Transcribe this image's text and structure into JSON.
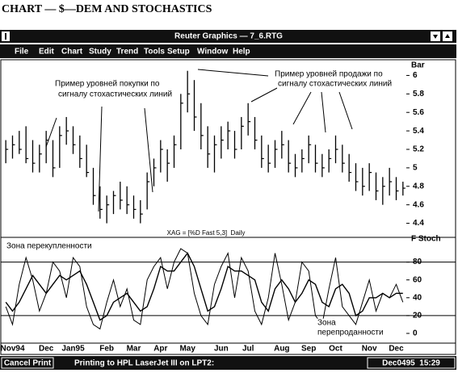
{
  "heading": "CHART — $—DEM AND STOCHASTICS",
  "window": {
    "title": "Reuter Graphics — 7_6.RTG",
    "menu": [
      "File",
      "Edit",
      "Chart",
      "Study",
      "Trend",
      "Tools",
      "Setup",
      "Window",
      "Help"
    ]
  },
  "status": {
    "button": "Cancel Print",
    "message": "Printing to HPL LaserJet III on LPT2:",
    "datetime": "Dec0495  15:29"
  },
  "chart_data": [
    {
      "type": "hlc",
      "y_label": "Bar",
      "color": "#000000",
      "ylim": [
        4.3,
        6.1
      ],
      "yticks": [
        4.4,
        4.6,
        4.8,
        5,
        5.2,
        5.4,
        5.6,
        5.8,
        6
      ],
      "high": [
        5.3,
        5.35,
        5.4,
        5.45,
        5.3,
        5.25,
        5.4,
        5.3,
        5.45,
        5.55,
        5.45,
        5.35,
        5.25,
        5.0,
        4.8,
        4.7,
        4.75,
        4.85,
        4.8,
        4.7,
        4.65,
        4.95,
        5.1,
        5.3,
        5.2,
        5.35,
        5.8,
        6.05,
        5.95,
        5.7,
        5.45,
        5.35,
        5.45,
        5.5,
        5.4,
        5.55,
        5.7,
        5.55,
        5.35,
        5.25,
        5.3,
        5.4,
        5.3,
        5.15,
        5.2,
        5.35,
        5.25,
        5.15,
        5.2,
        5.35,
        5.25,
        5.15,
        5.05,
        5.0,
        5.05,
        4.95,
        4.9,
        5.0,
        4.9,
        4.85
      ],
      "low": [
        5.05,
        5.1,
        5.15,
        5.05,
        4.95,
        4.95,
        5.05,
        4.9,
        5.0,
        5.25,
        5.15,
        5.0,
        4.9,
        4.6,
        4.45,
        4.4,
        4.5,
        4.55,
        4.5,
        4.45,
        4.4,
        4.55,
        4.8,
        4.95,
        4.85,
        5.0,
        5.2,
        5.6,
        5.4,
        5.2,
        5.0,
        4.95,
        5.1,
        5.2,
        5.1,
        5.2,
        5.35,
        5.2,
        5.0,
        4.95,
        5.0,
        5.1,
        4.95,
        4.9,
        4.95,
        5.05,
        4.95,
        4.9,
        4.95,
        5.05,
        4.95,
        4.85,
        4.75,
        4.7,
        4.75,
        4.65,
        4.6,
        4.7,
        4.65,
        4.7
      ],
      "close": [
        5.2,
        5.25,
        5.2,
        5.1,
        5.05,
        5.15,
        5.3,
        5.0,
        5.35,
        5.4,
        5.25,
        5.1,
        4.95,
        4.7,
        4.55,
        4.6,
        4.7,
        4.65,
        4.6,
        4.55,
        4.5,
        4.85,
        5.0,
        5.2,
        5.05,
        5.25,
        5.7,
        5.8,
        5.55,
        5.35,
        5.15,
        5.25,
        5.3,
        5.4,
        5.2,
        5.45,
        5.5,
        5.3,
        5.1,
        5.05,
        5.2,
        5.25,
        5.05,
        5.0,
        5.1,
        5.25,
        5.05,
        5.0,
        5.1,
        5.2,
        5.05,
        4.95,
        4.85,
        4.8,
        4.95,
        4.75,
        4.8,
        4.85,
        4.75,
        4.78
      ],
      "annotations": [
        {
          "lines": [
            "Пример уровней покупки по",
            "сигналу стохастических линий"
          ]
        },
        {
          "lines": [
            "Пример уровней продажи по",
            "сигналу стохастических линий"
          ]
        }
      ]
    },
    {
      "type": "line",
      "subtitle": "XAG = [%D Fast 5,3]  Daily",
      "y_label": "F Stoch",
      "ylim": [
        -10,
        105
      ],
      "yticks": [
        0,
        20,
        40,
        60,
        80
      ],
      "reference_lines": [
        80,
        20
      ],
      "categories": [
        null,
        "Nov94",
        null,
        null,
        null,
        null,
        "Dec",
        null,
        null,
        null,
        "Jan95",
        null,
        null,
        null,
        null,
        "Feb",
        null,
        null,
        null,
        "Mar",
        null,
        null,
        null,
        "Apr",
        null,
        null,
        null,
        "May",
        null,
        null,
        null,
        null,
        "Jun",
        null,
        null,
        null,
        "Jul",
        null,
        null,
        null,
        null,
        "Aug",
        null,
        null,
        null,
        "Sep",
        null,
        null,
        null,
        "Oct",
        null,
        null,
        null,
        null,
        "Nov",
        null,
        null,
        null,
        "Dec",
        null
      ],
      "series": [
        {
          "color": "#000000",
          "values": [
            30,
            10,
            55,
            85,
            60,
            25,
            45,
            80,
            70,
            40,
            85,
            75,
            30,
            10,
            5,
            35,
            60,
            30,
            50,
            15,
            10,
            60,
            75,
            85,
            50,
            80,
            95,
            90,
            45,
            20,
            10,
            55,
            75,
            90,
            40,
            85,
            70,
            25,
            10,
            40,
            90,
            55,
            15,
            35,
            80,
            70,
            20,
            10,
            50,
            85,
            30,
            20,
            10,
            35,
            60,
            25,
            45,
            40,
            55,
            35
          ]
        },
        {
          "color": "#000000",
          "values": [
            35,
            25,
            35,
            50,
            65,
            55,
            45,
            55,
            65,
            60,
            65,
            70,
            55,
            35,
            15,
            20,
            35,
            40,
            45,
            35,
            25,
            30,
            50,
            75,
            70,
            70,
            80,
            90,
            75,
            50,
            25,
            30,
            50,
            75,
            70,
            70,
            65,
            60,
            35,
            25,
            50,
            60,
            50,
            35,
            45,
            60,
            55,
            35,
            30,
            50,
            55,
            45,
            20,
            25,
            40,
            40,
            45,
            40,
            45,
            45
          ]
        }
      ],
      "annotations": [
        {
          "lines": [
            "Зона перекупленности"
          ]
        },
        {
          "lines": [
            "Зона",
            "перепроданности"
          ]
        }
      ]
    }
  ]
}
